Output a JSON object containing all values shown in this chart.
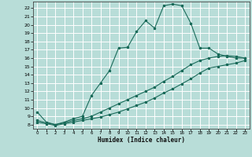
{
  "title": "",
  "xlabel": "Humidex (Indice chaleur)",
  "bg_color": "#b8ddd8",
  "grid_color": "#ffffff",
  "line_color": "#1a6b5a",
  "xlim": [
    -0.5,
    23.5
  ],
  "ylim": [
    7.5,
    22.8
  ],
  "xticks": [
    0,
    1,
    2,
    3,
    4,
    5,
    6,
    7,
    8,
    9,
    10,
    11,
    12,
    13,
    14,
    15,
    16,
    17,
    18,
    19,
    20,
    21,
    22,
    23
  ],
  "yticks": [
    8,
    9,
    10,
    11,
    12,
    13,
    14,
    15,
    16,
    17,
    18,
    19,
    20,
    21,
    22
  ],
  "line1_x": [
    0,
    1,
    2,
    3,
    4,
    5,
    6,
    7,
    8,
    9,
    10,
    11,
    12,
    13,
    14,
    15,
    16,
    17,
    18,
    19,
    20,
    21,
    22,
    23
  ],
  "line1_y": [
    9.5,
    8.3,
    8.0,
    8.3,
    8.7,
    9.0,
    11.5,
    13.0,
    14.5,
    17.2,
    17.3,
    19.2,
    20.5,
    19.6,
    22.3,
    22.5,
    22.3,
    20.2,
    17.2,
    17.2,
    16.5,
    16.2,
    16.0,
    16.0
  ],
  "line2_x": [
    0,
    1,
    2,
    3,
    4,
    5,
    6,
    7,
    8,
    9,
    10,
    11,
    12,
    13,
    14,
    15,
    16,
    17,
    18,
    19,
    20,
    21,
    22,
    23
  ],
  "line2_y": [
    8.5,
    8.2,
    8.0,
    8.2,
    8.5,
    8.7,
    9.0,
    9.5,
    10.0,
    10.5,
    11.0,
    11.5,
    12.0,
    12.5,
    13.2,
    13.8,
    14.5,
    15.2,
    15.7,
    16.0,
    16.2,
    16.3,
    16.2,
    16.0
  ],
  "line3_x": [
    0,
    1,
    2,
    3,
    4,
    5,
    6,
    7,
    8,
    9,
    10,
    11,
    12,
    13,
    14,
    15,
    16,
    17,
    18,
    19,
    20,
    21,
    22,
    23
  ],
  "line3_y": [
    8.3,
    8.1,
    7.9,
    8.1,
    8.3,
    8.5,
    8.7,
    8.9,
    9.2,
    9.5,
    9.9,
    10.3,
    10.7,
    11.2,
    11.8,
    12.3,
    12.9,
    13.5,
    14.2,
    14.8,
    15.0,
    15.2,
    15.4,
    15.7
  ]
}
